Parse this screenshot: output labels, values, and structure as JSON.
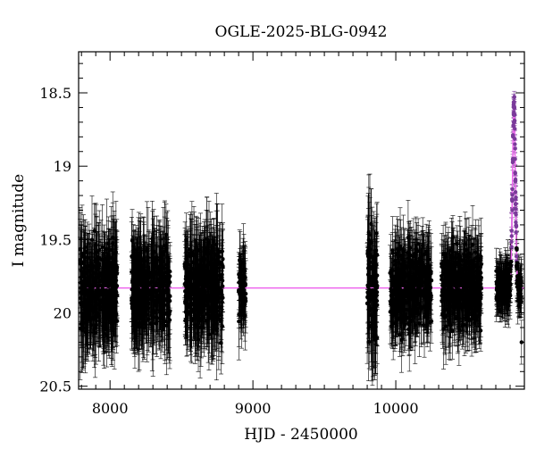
{
  "chart_data": {
    "type": "scatter",
    "title": "OGLE-2025-BLG-0942",
    "xlabel": "HJD - 2450000",
    "ylabel": "I magnitude",
    "xlim": [
      7780,
      10900
    ],
    "ylim": [
      20.52,
      18.22
    ],
    "y_axis_inverted": true,
    "x_ticks": [
      {
        "value": 8000,
        "label": "8000"
      },
      {
        "value": 9000,
        "label": "9000"
      },
      {
        "value": 10000,
        "label": "10000"
      }
    ],
    "y_ticks": [
      {
        "value": 18.5,
        "label": "18.5"
      },
      {
        "value": 19,
        "label": "19"
      },
      {
        "value": 19.5,
        "label": "19.5"
      },
      {
        "value": 20,
        "label": "20"
      },
      {
        "value": 20.5,
        "label": "20.5"
      }
    ],
    "grid": false,
    "colors": {
      "points": "#000000",
      "model": "#ee66ee",
      "peak_points": "#7a3a9a"
    },
    "series": [
      {
        "kind": "observations_with_errorbars",
        "baseline_mag": 19.83,
        "seasons": [
          {
            "hjd_range": [
              7790,
              8050
            ],
            "mag_range": [
              19.55,
              20.15
            ],
            "typical_error": 0.25
          },
          {
            "hjd_range": [
              8150,
              8420
            ],
            "mag_range": [
              19.55,
              20.1
            ],
            "typical_error": 0.25
          },
          {
            "hjd_range": [
              8520,
              8790
            ],
            "mag_range": [
              19.55,
              20.15
            ],
            "typical_error": 0.25
          },
          {
            "hjd_range": [
              8900,
              8950
            ],
            "mag_range": [
              19.65,
              20.05
            ],
            "typical_error": 0.2
          },
          {
            "hjd_range": [
              9800,
              9870
            ],
            "mag_range": [
              19.5,
              20.3
            ],
            "typical_error": 0.3
          },
          {
            "hjd_range": [
              9960,
              10250
            ],
            "mag_range": [
              19.6,
              20.15
            ],
            "typical_error": 0.2
          },
          {
            "hjd_range": [
              10320,
              10600
            ],
            "mag_range": [
              19.6,
              20.15
            ],
            "typical_error": 0.2
          },
          {
            "hjd_range": [
              10700,
              10880
            ],
            "mag_range": [
              18.58,
              20.05
            ],
            "typical_error": 0.12
          }
        ],
        "points": [
          {
            "x": 10790,
            "y": 19.95
          },
          {
            "x": 10800,
            "y": 19.85
          },
          {
            "x": 10808,
            "y": 19.65
          },
          {
            "x": 10815,
            "y": 19.3
          },
          {
            "x": 10820,
            "y": 18.95
          },
          {
            "x": 10825,
            "y": 18.65
          },
          {
            "x": 10830,
            "y": 18.7
          },
          {
            "x": 10836,
            "y": 19.05
          },
          {
            "x": 10842,
            "y": 19.45
          },
          {
            "x": 10850,
            "y": 19.75
          },
          {
            "x": 10860,
            "y": 19.85
          },
          {
            "x": 10872,
            "y": 19.85
          },
          {
            "x": 10880,
            "y": 20.2
          }
        ]
      },
      {
        "kind": "model",
        "baseline_mag": 19.83,
        "t0": 10827,
        "peak_mag": 18.58,
        "x_range": [
          7780,
          10900
        ]
      }
    ]
  }
}
